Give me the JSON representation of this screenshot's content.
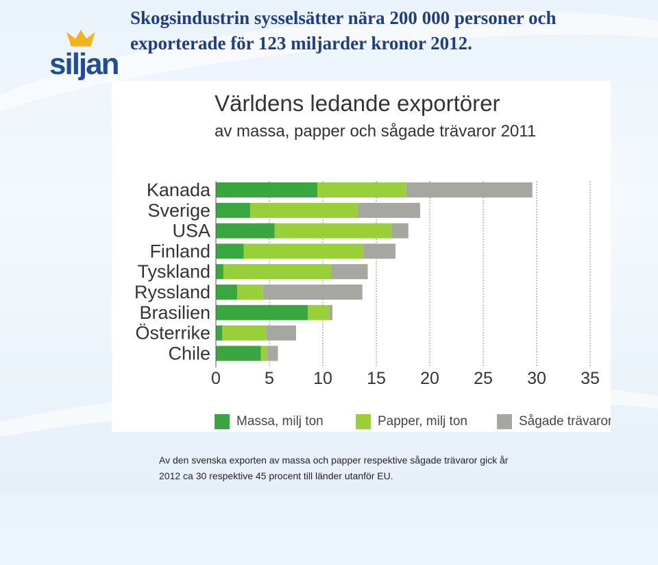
{
  "header": {
    "logo_text": "siljan",
    "headline_line1": "Skogsindustrin sysselsätter nära 200 000 personer och",
    "headline_line2": "exporterade för 123 miljarder kronor 2012."
  },
  "caption": {
    "line1": "Av den svenska exporten av massa och papper respektive sågade trävaror gick år",
    "line2": "2012 ca 30 respektive 45 procent till länder utanför EU."
  },
  "colors": {
    "massa": "#3aa63f",
    "papper": "#99d03a",
    "sagade": "#a7a7a2",
    "brand": "#1f4e96",
    "crown": "#f2b31b"
  },
  "chart_data": {
    "type": "bar",
    "orientation": "horizontal",
    "stacked": true,
    "title": "Världens ledande exportörer",
    "subtitle": "av massa, papper och sågade trävaror 2011",
    "categories": [
      "Kanada",
      "Sverige",
      "USA",
      "Finland",
      "Tyskland",
      "Ryssland",
      "Brasilien",
      "Österrike",
      "Chile"
    ],
    "series": [
      {
        "name": "Massa, milj ton",
        "values": [
          9.5,
          3.2,
          5.5,
          2.6,
          0.7,
          2.0,
          8.6,
          0.6,
          4.2
        ]
      },
      {
        "name": "Papper, milj ton",
        "values": [
          8.3,
          10.1,
          10.9,
          11.2,
          10.1,
          2.4,
          2.0,
          4.1,
          0.6
        ]
      },
      {
        "name": "Sågade trävaror",
        "values": [
          11.8,
          5.8,
          1.6,
          3.0,
          3.4,
          9.3,
          0.3,
          2.8,
          1.0
        ]
      }
    ],
    "xlim": [
      0,
      35
    ],
    "xticks": [
      0,
      5,
      10,
      15,
      20,
      25,
      30,
      35
    ],
    "grid": "vertical",
    "legend_position": "bottom"
  }
}
